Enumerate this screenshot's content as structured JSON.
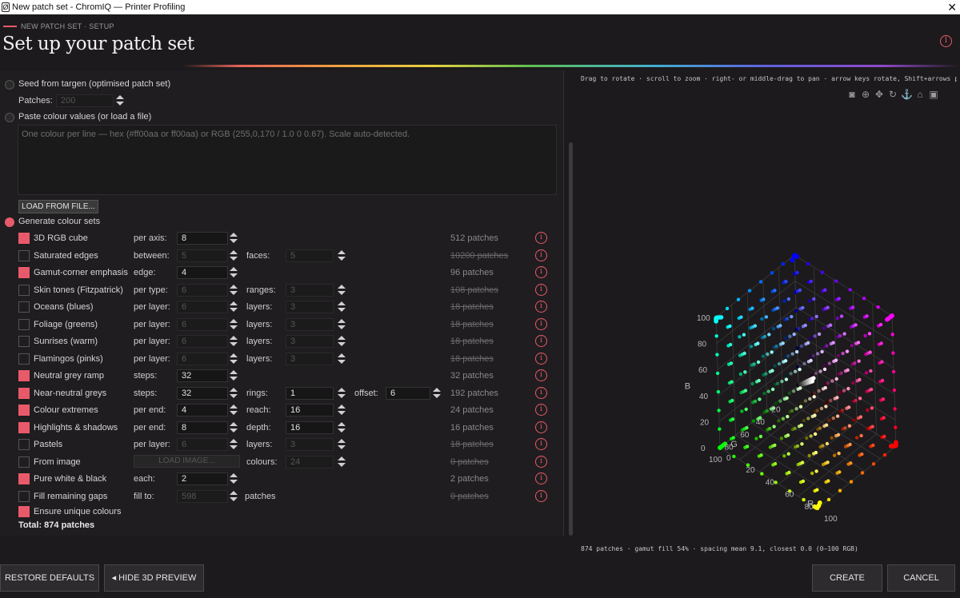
{
  "window": {
    "title": "New patch set - ChromIQ — Printer Profiling",
    "close": "✕",
    "icon": "Ø"
  },
  "header": {
    "breadcrumb": "NEW PATCH SET · SETUP",
    "title": "Set up your patch set",
    "info": "i"
  },
  "seed": {
    "label": "Seed from targen (optimised patch set)",
    "patches_label": "Patches:",
    "patches_value": "200"
  },
  "paste": {
    "label": "Paste colour values (or load a file)",
    "placeholder": "One colour per line — hex (#ff00aa or ff00aa) or RGB (255,0,170 / 1.0 0 0.67). Scale auto-detected.",
    "load_button": "LOAD FROM FILE..."
  },
  "generate": {
    "label": "Generate colour sets"
  },
  "sets": [
    {
      "name": "3D RGB cube",
      "on": true,
      "p1": "per axis:",
      "v1": "8",
      "d1": false,
      "p2": "",
      "v2": "",
      "d2": false,
      "count": "512 patches",
      "strike": false
    },
    {
      "name": "Saturated edges",
      "on": false,
      "p1": "between:",
      "v1": "5",
      "d1": true,
      "p2": "faces:",
      "v2": "5",
      "d2": true,
      "count": "10200 patches",
      "strike": true
    },
    {
      "name": "Gamut-corner emphasis",
      "on": true,
      "p1": "edge:",
      "v1": "4",
      "d1": false,
      "p2": "",
      "v2": "",
      "d2": false,
      "count": "96 patches",
      "strike": false
    },
    {
      "name": "Skin tones (Fitzpatrick)",
      "on": false,
      "p1": "per type:",
      "v1": "6",
      "d1": true,
      "p2": "ranges:",
      "v2": "3",
      "d2": true,
      "count": "108 patches",
      "strike": true
    },
    {
      "name": "Oceans (blues)",
      "on": false,
      "p1": "per layer:",
      "v1": "6",
      "d1": true,
      "p2": "layers:",
      "v2": "3",
      "d2": true,
      "count": "18 patches",
      "strike": true
    },
    {
      "name": "Foliage (greens)",
      "on": false,
      "p1": "per layer:",
      "v1": "6",
      "d1": true,
      "p2": "layers:",
      "v2": "3",
      "d2": true,
      "count": "18 patches",
      "strike": true
    },
    {
      "name": "Sunrises (warm)",
      "on": false,
      "p1": "per layer:",
      "v1": "6",
      "d1": true,
      "p2": "layers:",
      "v2": "3",
      "d2": true,
      "count": "18 patches",
      "strike": true
    },
    {
      "name": "Flamingos (pinks)",
      "on": false,
      "p1": "per layer:",
      "v1": "6",
      "d1": true,
      "p2": "layers:",
      "v2": "3",
      "d2": true,
      "count": "18 patches",
      "strike": true
    },
    {
      "name": "Neutral grey ramp",
      "on": true,
      "p1": "steps:",
      "v1": "32",
      "d1": false,
      "p2": "",
      "v2": "",
      "d2": false,
      "count": "32 patches",
      "strike": false
    },
    {
      "name": "Near-neutral greys",
      "on": true,
      "p1": "steps:",
      "v1": "32",
      "d1": false,
      "p2": "rings:",
      "v2": "1",
      "d2": false,
      "count": "192 patches",
      "strike": false
    },
    {
      "name": "Colour extremes",
      "on": true,
      "p1": "per end:",
      "v1": "4",
      "d1": false,
      "p2": "reach:",
      "v2": "16",
      "d2": false,
      "count": "24 patches",
      "strike": false
    },
    {
      "name": "Highlights & shadows",
      "on": true,
      "p1": "per end:",
      "v1": "8",
      "d1": false,
      "p2": "depth:",
      "v2": "16",
      "d2": false,
      "count": "16 patches",
      "strike": false
    },
    {
      "name": "Pastels",
      "on": false,
      "p1": "per layer:",
      "v1": "6",
      "d1": true,
      "p2": "layers:",
      "v2": "3",
      "d2": true,
      "count": "18 patches",
      "strike": true
    },
    {
      "name": "From image",
      "on": false,
      "p1": "",
      "v1": "",
      "d1": true,
      "p2": "colours:",
      "v2": "24",
      "d2": true,
      "count": "0 patches",
      "strike": true
    },
    {
      "name": "Pure white & black",
      "on": true,
      "p1": "each:",
      "v1": "2",
      "d1": false,
      "p2": "",
      "v2": "",
      "d2": false,
      "count": "2 patches",
      "strike": false
    },
    {
      "name": "Fill remaining gaps",
      "on": false,
      "p1": "fill to:",
      "v1": "598",
      "d1": true,
      "p2": "",
      "v2": "",
      "d2": false,
      "count": "0 patches",
      "strike": true
    }
  ],
  "near_neutral_extra": {
    "label": "offset:",
    "value": "6"
  },
  "from_image_button": "LOAD IMAGE...",
  "fill_suffix": "patches",
  "unique": {
    "label": "Ensure unique colours",
    "on": true
  },
  "total": "Total: 874 patches",
  "preview": {
    "hint": "Drag to rotate · scroll to zoom · right- or middle-drag to pan · arrow keys rotate, Shift+arrows pan, +/- …",
    "toolbar": [
      "camera-icon",
      "zoom-icon",
      "pan-icon",
      "rotate-icon",
      "anchor-icon",
      "home-icon",
      "save-icon"
    ],
    "axes": {
      "b_label": "B",
      "g_label": "G",
      "r_label": "R",
      "b_ticks": [
        "0",
        "20",
        "40",
        "60",
        "80",
        "100"
      ],
      "g_ticks": [
        "20",
        "40",
        "60",
        "80",
        "100"
      ],
      "r_ticks": [
        "0",
        "20",
        "40",
        "60",
        "80",
        "100"
      ]
    },
    "stats": "874 patches · gamut fill 54% · spacing mean 9.1, closest 0.0 (0–100 RGB)"
  },
  "footer": {
    "restore": "RESTORE DEFAULTS",
    "hide": "◂ HIDE 3D PREVIEW",
    "create": "CREATE",
    "cancel": "CANCEL"
  }
}
